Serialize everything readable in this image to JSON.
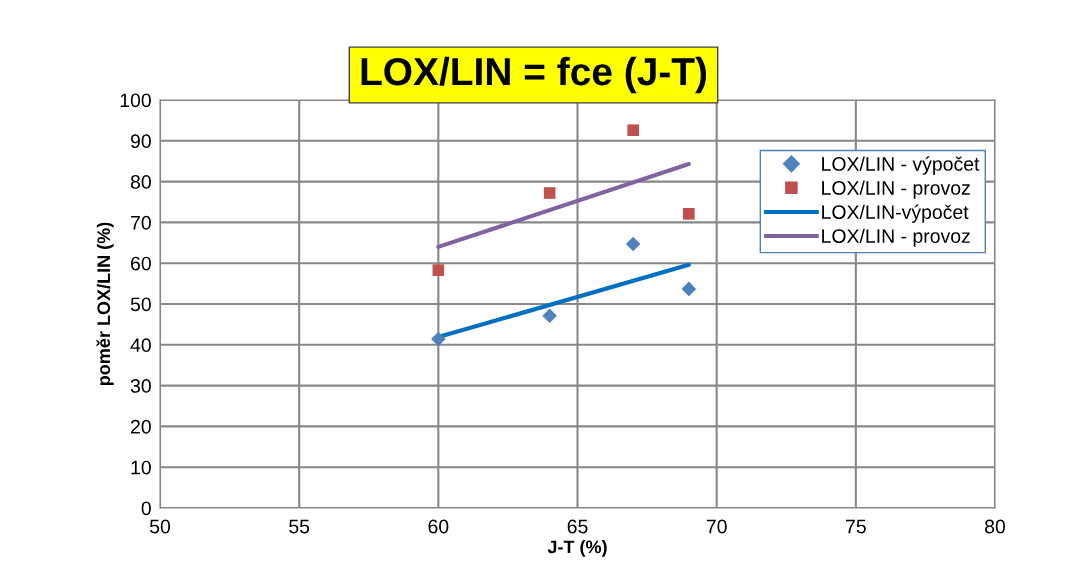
{
  "chart_data": {
    "type": "scatter",
    "title": "LOX/LIN = fce (J-T)",
    "xlabel": "J-T (%)",
    "ylabel": "poměr LOX/LIN (%)",
    "xlim": [
      50,
      80
    ],
    "xticks": [
      50,
      55,
      60,
      65,
      70,
      75,
      80
    ],
    "ylim": [
      0,
      100
    ],
    "yticks": [
      0,
      10,
      20,
      30,
      40,
      50,
      60,
      70,
      80,
      90,
      100
    ],
    "grid": true,
    "legend": "right",
    "series": [
      {
        "name": "LOX/LIN - výpočet",
        "marker": "diamond",
        "color": "#4f81bd",
        "x": [
          60,
          64,
          67,
          69
        ],
        "values": [
          41.4,
          47.1,
          64.7,
          53.7
        ]
      },
      {
        "name": "LOX/LIN - provoz",
        "marker": "square",
        "color": "#c0504d",
        "x": [
          60,
          64,
          67,
          69
        ],
        "values": [
          58.3,
          77.2,
          92.6,
          72.1
        ]
      },
      {
        "name": "LOX/LIN-výpočet",
        "type": "line",
        "marker": "none",
        "color": "#0070c0",
        "x": [
          60,
          69
        ],
        "values": [
          41.9,
          59.6
        ]
      },
      {
        "name": "LOX/LIN - provoz",
        "type": "line",
        "marker": "none",
        "color": "#8064a2",
        "x": [
          60,
          69
        ],
        "values": [
          64.0,
          84.3
        ]
      }
    ]
  }
}
